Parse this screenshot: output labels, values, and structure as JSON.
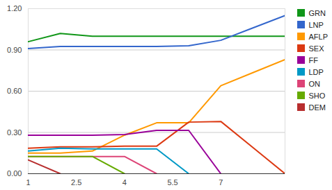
{
  "chart_data": {
    "type": "line",
    "x": [
      1,
      2,
      3,
      4,
      5,
      6,
      7,
      8,
      9
    ],
    "xlim": [
      1,
      9
    ],
    "xticks": [
      1,
      2.5,
      4,
      5.5,
      7
    ],
    "ylim": [
      0,
      1.2
    ],
    "yticks": [
      {
        "value": 0,
        "label": "0.00"
      },
      {
        "value": 0.3,
        "label": "0.30"
      },
      {
        "value": 0.6,
        "label": "0.60"
      },
      {
        "value": 0.9,
        "label": "0.90"
      },
      {
        "value": 1.2,
        "label": "1.20"
      }
    ],
    "grid": true,
    "legend": "right",
    "series": [
      {
        "name": "GRN",
        "color": "#109618",
        "values": [
          0.96,
          1.02,
          1.0,
          1.0,
          1.0,
          1.0,
          1.0,
          1.0,
          1.0
        ]
      },
      {
        "name": "LNP",
        "color": "#3366cc",
        "values": [
          0.91,
          0.925,
          0.925,
          0.925,
          0.925,
          0.93,
          0.97,
          1.06,
          1.15
        ]
      },
      {
        "name": "AFLP",
        "color": "#ff9900",
        "values": [
          0.15,
          0.15,
          0.165,
          0.28,
          0.37,
          0.37,
          0.64,
          0.735,
          0.83
        ]
      },
      {
        "name": "SEX",
        "color": "#dc3912",
        "values": [
          0.185,
          0.195,
          0.195,
          0.2,
          0.2,
          0.375,
          0.38,
          0.19,
          0.0
        ]
      },
      {
        "name": "FF",
        "color": "#990099",
        "values": [
          0.28,
          0.28,
          0.28,
          0.285,
          0.315,
          0.315,
          0.0,
          null,
          null
        ]
      },
      {
        "name": "LDP",
        "color": "#0099c6",
        "values": [
          0.165,
          0.185,
          0.18,
          0.18,
          0.18,
          0.0,
          null,
          null,
          null
        ]
      },
      {
        "name": "ON",
        "color": "#dd4477",
        "values": [
          0.125,
          0.125,
          0.125,
          0.125,
          0.0,
          null,
          null,
          null,
          null
        ]
      },
      {
        "name": "SHO",
        "color": "#66aa00",
        "values": [
          0.125,
          0.125,
          0.125,
          0.0,
          null,
          null,
          null,
          null,
          null
        ]
      },
      {
        "name": "DEM",
        "color": "#b82e2e",
        "values": [
          0.1,
          0.0,
          null,
          null,
          null,
          null,
          null,
          null,
          null
        ]
      }
    ]
  }
}
